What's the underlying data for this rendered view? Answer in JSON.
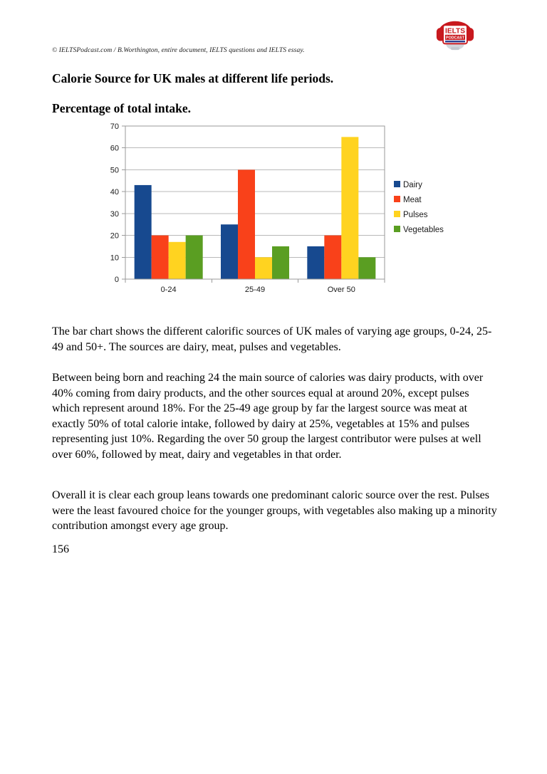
{
  "header": {
    "copyright": "© IELTSPodcast.com / B.Worthington, entire document, IELTS questions and IELTS essay."
  },
  "logo": {
    "line1": "IELTS",
    "line2": "PODCAST",
    "band_color": "#c8191e",
    "stripe_color": "#2a3f8f"
  },
  "headings": {
    "title": "Calorie Source for UK males at different life periods.",
    "subtitle": "Percentage of total intake."
  },
  "chart_data": {
    "type": "bar",
    "title": "",
    "xlabel": "",
    "ylabel": "",
    "categories": [
      "0-24",
      "25-49",
      "Over 50"
    ],
    "series": [
      {
        "name": "Dairy",
        "color": "#17498f",
        "values": [
          43,
          25,
          15
        ]
      },
      {
        "name": "Meat",
        "color": "#f9411a",
        "values": [
          20,
          50,
          20
        ]
      },
      {
        "name": "Pulses",
        "color": "#ffd320",
        "values": [
          17,
          10,
          65
        ]
      },
      {
        "name": "Vegetables",
        "color": "#5a9e22",
        "values": [
          20,
          15,
          10
        ]
      }
    ],
    "ylim": [
      0,
      70
    ],
    "ytick_step": 10,
    "grid": true,
    "legend_position": "right",
    "grid_color": "#b9b9b9",
    "axis_color": "#9a9a9a",
    "plot_bg": "#ffffff"
  },
  "body": {
    "paragraphs": [
      "The bar chart shows the different calorific sources of UK males of varying age groups, 0-24, 25-49 and 50+. The sources are dairy, meat, pulses and vegetables.",
      "Between being born and reaching 24 the main source of calories was dairy products, with over 40% coming from dairy products, and the other sources equal at around 20%, except pulses which represent around 18%. For the 25-49 age group by far the largest source was meat at exactly 50% of total calorie intake, followed by dairy at 25%, vegetables at 15% and pulses representing  just 10%. Regarding the over 50 group the largest contributor were pulses at well over 60%, followed by meat, dairy and vegetables in that order.",
      "Overall it is clear each group leans towards one predominant caloric source over the rest. Pulses were the least favoured choice for the younger groups, with vegetables also making up a minority contribution amongst every age group."
    ]
  },
  "footer": {
    "page_number": "156"
  }
}
